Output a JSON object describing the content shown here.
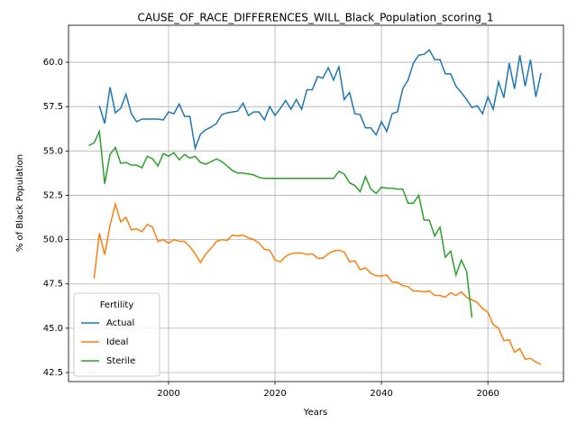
{
  "chart_data": {
    "type": "line",
    "title": "CAUSE_OF_RACE_DIFFERENCES_WILL_Black_Population_scoring_1",
    "x_label": "Years",
    "y_label": "% of Black Population",
    "legend_title": "Fertility",
    "legend": "lower left",
    "grid": true,
    "xlim": [
      1981.2,
      2074.2
    ],
    "xticks": [
      2000,
      2020,
      2040,
      2060
    ],
    "ylim": [
      41.99,
      62.09
    ],
    "yticks": [
      42.5,
      {
        "value": 45,
        "label": "45.0"
      },
      47.5,
      {
        "value": 50,
        "label": "50.0"
      },
      52.5,
      {
        "value": 55,
        "label": "55.0"
      },
      57.5,
      {
        "value": 60,
        "label": "60.0"
      }
    ],
    "series": [
      {
        "name": "Actual",
        "color": "#1f77b4",
        "x": [
          1987,
          1988,
          1989,
          1990,
          1991,
          1992,
          1993,
          1994,
          1995,
          1996,
          1997,
          1998,
          1999,
          2000,
          2001,
          2002,
          2003,
          2004,
          2005,
          2006,
          2007,
          2008,
          2009,
          2010,
          2011,
          2012,
          2013,
          2014,
          2015,
          2016,
          2017,
          2018,
          2019,
          2020,
          2021,
          2022,
          2023,
          2024,
          2025,
          2026,
          2027,
          2028,
          2029,
          2030,
          2031,
          2032,
          2033,
          2034,
          2035,
          2036,
          2037,
          2038,
          2039,
          2040,
          2041,
          2042,
          2043,
          2044,
          2045,
          2046,
          2047,
          2048,
          2049,
          2050,
          2051,
          2052,
          2053,
          2054,
          2055,
          2056,
          2057,
          2058,
          2059,
          2060,
          2061,
          2062,
          2063,
          2064,
          2065,
          2066,
          2067,
          2068,
          2069,
          2070
        ],
        "values": [
          57.55,
          56.55,
          58.6,
          57.15,
          57.4,
          58.2,
          57.1,
          56.65,
          56.8,
          56.8,
          56.8,
          56.8,
          56.75,
          57.2,
          57.1,
          57.65,
          56.95,
          56.95,
          55.15,
          55.95,
          56.2,
          56.35,
          56.55,
          57.05,
          57.15,
          57.2,
          57.25,
          57.7,
          57.0,
          57.2,
          57.2,
          56.75,
          57.5,
          57.0,
          57.4,
          57.85,
          57.35,
          57.9,
          57.35,
          58.45,
          58.45,
          59.2,
          59.1,
          59.7,
          59.0,
          59.75,
          57.9,
          58.3,
          57.1,
          57.05,
          56.3,
          56.3,
          55.9,
          56.65,
          56.1,
          57.1,
          57.2,
          58.5,
          59.0,
          59.95,
          60.4,
          60.45,
          60.7,
          60.15,
          60.15,
          59.35,
          59.35,
          58.65,
          58.3,
          57.9,
          57.45,
          57.55,
          57.1,
          58.05,
          57.35,
          58.9,
          58.0,
          59.95,
          58.5,
          60.4,
          58.65,
          60.15,
          58.05,
          59.4
        ]
      },
      {
        "name": "Ideal",
        "color": "#ff7f0e",
        "x": [
          1986,
          1987,
          1988,
          1989,
          1990,
          1991,
          1992,
          1993,
          1994,
          1995,
          1996,
          1997,
          1998,
          1999,
          2000,
          2001,
          2002,
          2003,
          2004,
          2005,
          2006,
          2007,
          2008,
          2009,
          2010,
          2011,
          2012,
          2013,
          2014,
          2015,
          2016,
          2017,
          2018,
          2019,
          2020,
          2021,
          2022,
          2023,
          2024,
          2025,
          2026,
          2027,
          2028,
          2029,
          2030,
          2031,
          2032,
          2033,
          2034,
          2035,
          2036,
          2037,
          2038,
          2039,
          2040,
          2041,
          2042,
          2043,
          2044,
          2045,
          2046,
          2047,
          2048,
          2049,
          2050,
          2051,
          2052,
          2053,
          2054,
          2055,
          2056,
          2057,
          2058,
          2059,
          2060,
          2061,
          2062,
          2063,
          2064,
          2065,
          2066,
          2067,
          2068,
          2069,
          2070
        ],
        "values": [
          47.8,
          50.35,
          49.15,
          50.8,
          52.0,
          51.0,
          51.25,
          50.55,
          50.6,
          50.45,
          50.85,
          50.7,
          49.9,
          50.0,
          49.8,
          50.0,
          49.9,
          49.9,
          49.6,
          49.2,
          48.7,
          49.2,
          49.5,
          49.9,
          50.0,
          49.95,
          50.25,
          50.2,
          50.25,
          50.1,
          50.0,
          49.8,
          49.45,
          49.4,
          48.85,
          48.75,
          49.05,
          49.2,
          49.25,
          49.25,
          49.15,
          49.2,
          48.95,
          48.95,
          49.2,
          49.35,
          49.4,
          49.3,
          48.75,
          48.8,
          48.3,
          48.4,
          48.1,
          47.95,
          47.95,
          48.0,
          47.6,
          47.6,
          47.4,
          47.35,
          47.1,
          47.1,
          47.05,
          47.1,
          46.85,
          46.85,
          46.75,
          47.0,
          46.85,
          47.05,
          46.75,
          46.6,
          46.45,
          46.1,
          45.9,
          45.2,
          45.0,
          44.3,
          44.35,
          43.65,
          43.85,
          43.25,
          43.3,
          43.1,
          42.95
        ]
      },
      {
        "name": "Sterile",
        "color": "#2ca02c",
        "x": [
          1985,
          1986,
          1987,
          1988,
          1989,
          1990,
          1991,
          1992,
          1993,
          1994,
          1995,
          1996,
          1997,
          1998,
          1999,
          2000,
          2001,
          2002,
          2003,
          2004,
          2005,
          2006,
          2007,
          2008,
          2009,
          2010,
          2011,
          2012,
          2013,
          2014,
          2015,
          2016,
          2017,
          2018,
          2019,
          2020,
          2021,
          2022,
          2023,
          2024,
          2025,
          2026,
          2027,
          2028,
          2029,
          2030,
          2031,
          2032,
          2033,
          2034,
          2035,
          2036,
          2037,
          2038,
          2039,
          2040,
          2041,
          2042,
          2043,
          2044,
          2045,
          2046,
          2047,
          2048,
          2049,
          2050,
          2051,
          2052,
          2053,
          2054,
          2055,
          2056,
          2057
        ],
        "values": [
          55.3,
          55.45,
          56.1,
          53.15,
          54.8,
          55.2,
          54.3,
          54.35,
          54.2,
          54.2,
          54.05,
          54.7,
          54.55,
          54.15,
          54.85,
          54.7,
          54.9,
          54.5,
          54.8,
          54.6,
          54.7,
          54.35,
          54.25,
          54.4,
          54.55,
          54.4,
          54.15,
          53.9,
          53.75,
          53.75,
          53.7,
          53.65,
          53.5,
          53.45,
          53.45,
          53.45,
          53.45,
          53.45,
          53.45,
          53.45,
          53.45,
          53.45,
          53.45,
          53.45,
          53.45,
          53.45,
          53.45,
          53.85,
          53.7,
          53.2,
          53.05,
          52.7,
          53.55,
          52.85,
          52.6,
          52.95,
          52.9,
          52.9,
          52.85,
          52.85,
          52.05,
          52.05,
          52.5,
          51.1,
          51.1,
          50.2,
          50.7,
          49.0,
          49.35,
          48.0,
          48.85,
          48.2,
          45.6
        ]
      }
    ]
  }
}
